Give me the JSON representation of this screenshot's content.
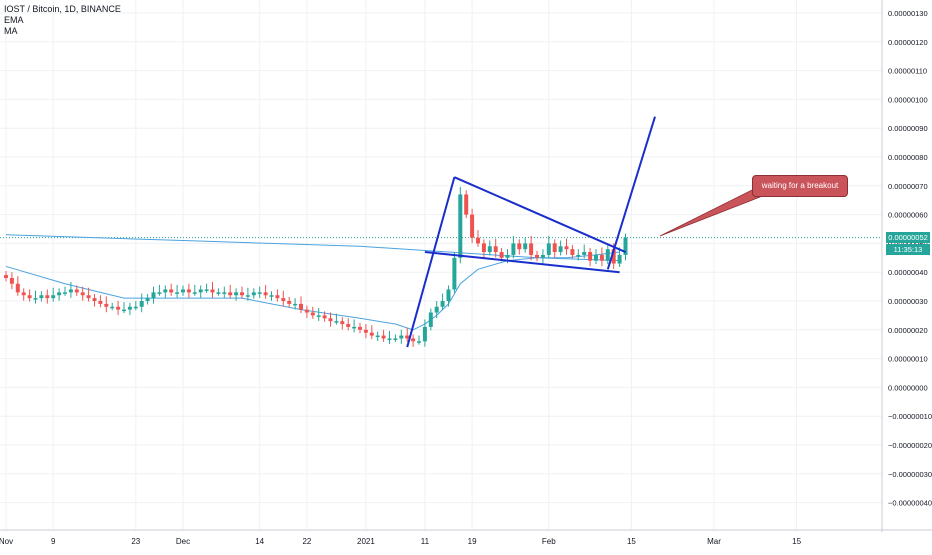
{
  "header": {
    "symbol_line": "IOST / Bitcoin, 1D, BINANCE",
    "indicators": [
      "EMA",
      "MA"
    ]
  },
  "annotation": {
    "callout_text": "waiting for a breakout"
  },
  "price_tag": {
    "last_price": "0.00000052",
    "countdown": "11:35:13"
  },
  "colors": {
    "up": "#26a69a",
    "down": "#ef5350",
    "ma_line": "#4aa3df",
    "drawing": "#1a2ecc",
    "callout_fill": "#c9545a",
    "grid": "#eef1f5"
  },
  "chart_data": {
    "type": "candlestick",
    "title": "IOST / Bitcoin, 1D, BINANCE",
    "ylim": [
      -4.5e-07,
      1.35e-06
    ],
    "y_ticks": [
      "0.00000130",
      "0.00000120",
      "0.00000110",
      "0.00000100",
      "0.00000090",
      "0.00000080",
      "0.00000070",
      "0.00000060",
      "0.00000050",
      "0.00000040",
      "0.00000030",
      "0.00000020",
      "0.00000010",
      "0.00000000",
      "−0.00000010",
      "−0.00000020",
      "−0.00000030",
      "−0.00000040"
    ],
    "y_tick_values": [
      130,
      120,
      110,
      100,
      90,
      80,
      70,
      60,
      50,
      40,
      30,
      20,
      10,
      0,
      -10,
      -20,
      -30,
      -40
    ],
    "y_unit_scale": 1e-08,
    "x_ticks": [
      {
        "label": "Nov",
        "day": 0
      },
      {
        "label": "9",
        "day": 8
      },
      {
        "label": "23",
        "day": 22
      },
      {
        "label": "Dec",
        "day": 30
      },
      {
        "label": "14",
        "day": 43
      },
      {
        "label": "22",
        "day": 51
      },
      {
        "label": "2021",
        "day": 61
      },
      {
        "label": "11",
        "day": 71
      },
      {
        "label": "19",
        "day": 79
      },
      {
        "label": "Feb",
        "day": 92
      },
      {
        "label": "15",
        "day": 106
      },
      {
        "label": "Mar",
        "day": 120
      },
      {
        "label": "15",
        "day": 134
      }
    ],
    "candles_close": [
      38,
      36,
      33,
      32,
      31,
      31,
      32,
      31,
      32,
      33,
      33,
      34,
      33,
      32,
      31,
      30,
      29,
      28,
      28,
      27,
      27,
      28,
      28,
      30,
      31,
      33,
      33,
      34,
      33,
      33,
      34,
      33,
      33,
      34,
      34,
      33,
      33,
      33,
      32,
      33,
      32,
      32,
      33,
      33,
      32,
      32,
      31,
      30,
      29,
      29,
      27,
      26,
      25,
      25,
      24,
      23,
      23,
      22,
      21,
      21,
      20,
      19,
      18,
      18,
      17,
      17,
      17,
      18,
      17,
      16,
      16,
      21,
      26,
      28,
      30,
      34,
      45,
      67,
      60,
      52,
      50,
      47,
      49,
      47,
      45,
      46,
      50,
      48,
      50,
      46,
      45,
      46,
      50,
      47,
      49,
      48,
      46,
      46,
      47,
      44,
      46,
      44,
      48,
      43,
      46,
      52
    ],
    "moving_average": [
      {
        "day": 0,
        "value": 42
      },
      {
        "day": 10,
        "value": 36
      },
      {
        "day": 20,
        "value": 31
      },
      {
        "day": 30,
        "value": 31
      },
      {
        "day": 40,
        "value": 31
      },
      {
        "day": 50,
        "value": 27
      },
      {
        "day": 60,
        "value": 24
      },
      {
        "day": 66,
        "value": 22
      },
      {
        "day": 69,
        "value": 20
      },
      {
        "day": 71,
        "value": 22
      },
      {
        "day": 73,
        "value": 25
      },
      {
        "day": 75,
        "value": 29
      },
      {
        "day": 77,
        "value": 36
      },
      {
        "day": 80,
        "value": 41
      },
      {
        "day": 85,
        "value": 44
      },
      {
        "day": 90,
        "value": 45
      },
      {
        "day": 95,
        "value": 45
      },
      {
        "day": 100,
        "value": 46
      },
      {
        "day": 104,
        "value": 47
      }
    ],
    "long_average": [
      {
        "day": 0,
        "value": 53
      },
      {
        "day": 30,
        "value": 51
      },
      {
        "day": 60,
        "value": 49
      },
      {
        "day": 75,
        "value": 47
      },
      {
        "day": 90,
        "value": 45
      },
      {
        "day": 104,
        "value": 44
      }
    ],
    "drawings": [
      {
        "from": {
          "day": 68,
          "value": 14
        },
        "to": {
          "day": 76,
          "value": 73
        }
      },
      {
        "from": {
          "day": 76,
          "value": 73
        },
        "to": {
          "day": 105,
          "value": 47
        }
      },
      {
        "from": {
          "day": 71,
          "value": 47
        },
        "to": {
          "day": 104,
          "value": 40
        }
      },
      {
        "from": {
          "day": 102,
          "value": 41
        },
        "to": {
          "day": 110,
          "value": 94
        }
      }
    ],
    "last_value": 52
  }
}
